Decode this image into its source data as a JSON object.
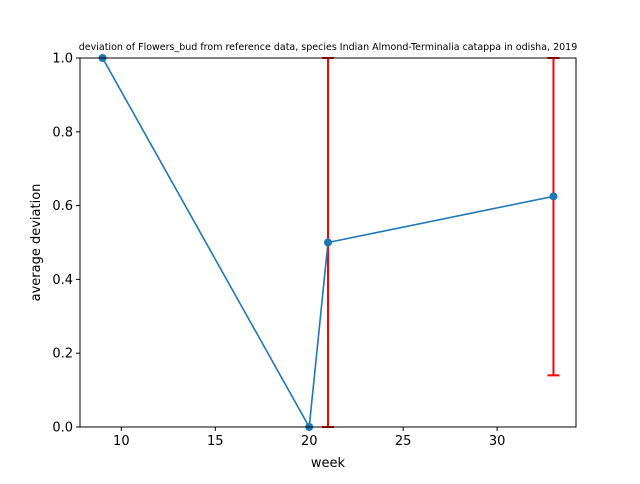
{
  "chart_data": {
    "type": "line",
    "title": "deviation of Flowers_bud from reference data, species Indian Almond-Terminalia catappa in odisha, 2019",
    "xlabel": "week",
    "ylabel": "average deviation",
    "xlim": [
      7.8,
      34.2
    ],
    "ylim": [
      0,
      1
    ],
    "x_ticks": [
      10,
      15,
      20,
      25,
      30
    ],
    "x_tick_labels": [
      "10",
      "15",
      "20",
      "25",
      "30"
    ],
    "y_ticks": [
      0,
      0.2,
      0.4,
      0.6,
      0.8,
      1.0
    ],
    "y_tick_labels": [
      "0.0",
      "0.2",
      "0.4",
      "0.6",
      "0.8",
      "1.0"
    ],
    "grid": false,
    "series": [
      {
        "x": [
          9,
          20,
          21,
          33
        ],
        "y": [
          1.0,
          0.0,
          0.5,
          0.625
        ],
        "color": "#1f77b4",
        "marker": "circle"
      }
    ],
    "error_bars": [
      {
        "x": 21,
        "low": 0.0,
        "high": 1.0,
        "color": "#ff0000"
      },
      {
        "x": 33,
        "low": 0.14,
        "high": 1.0,
        "color": "#ff0000"
      }
    ]
  }
}
